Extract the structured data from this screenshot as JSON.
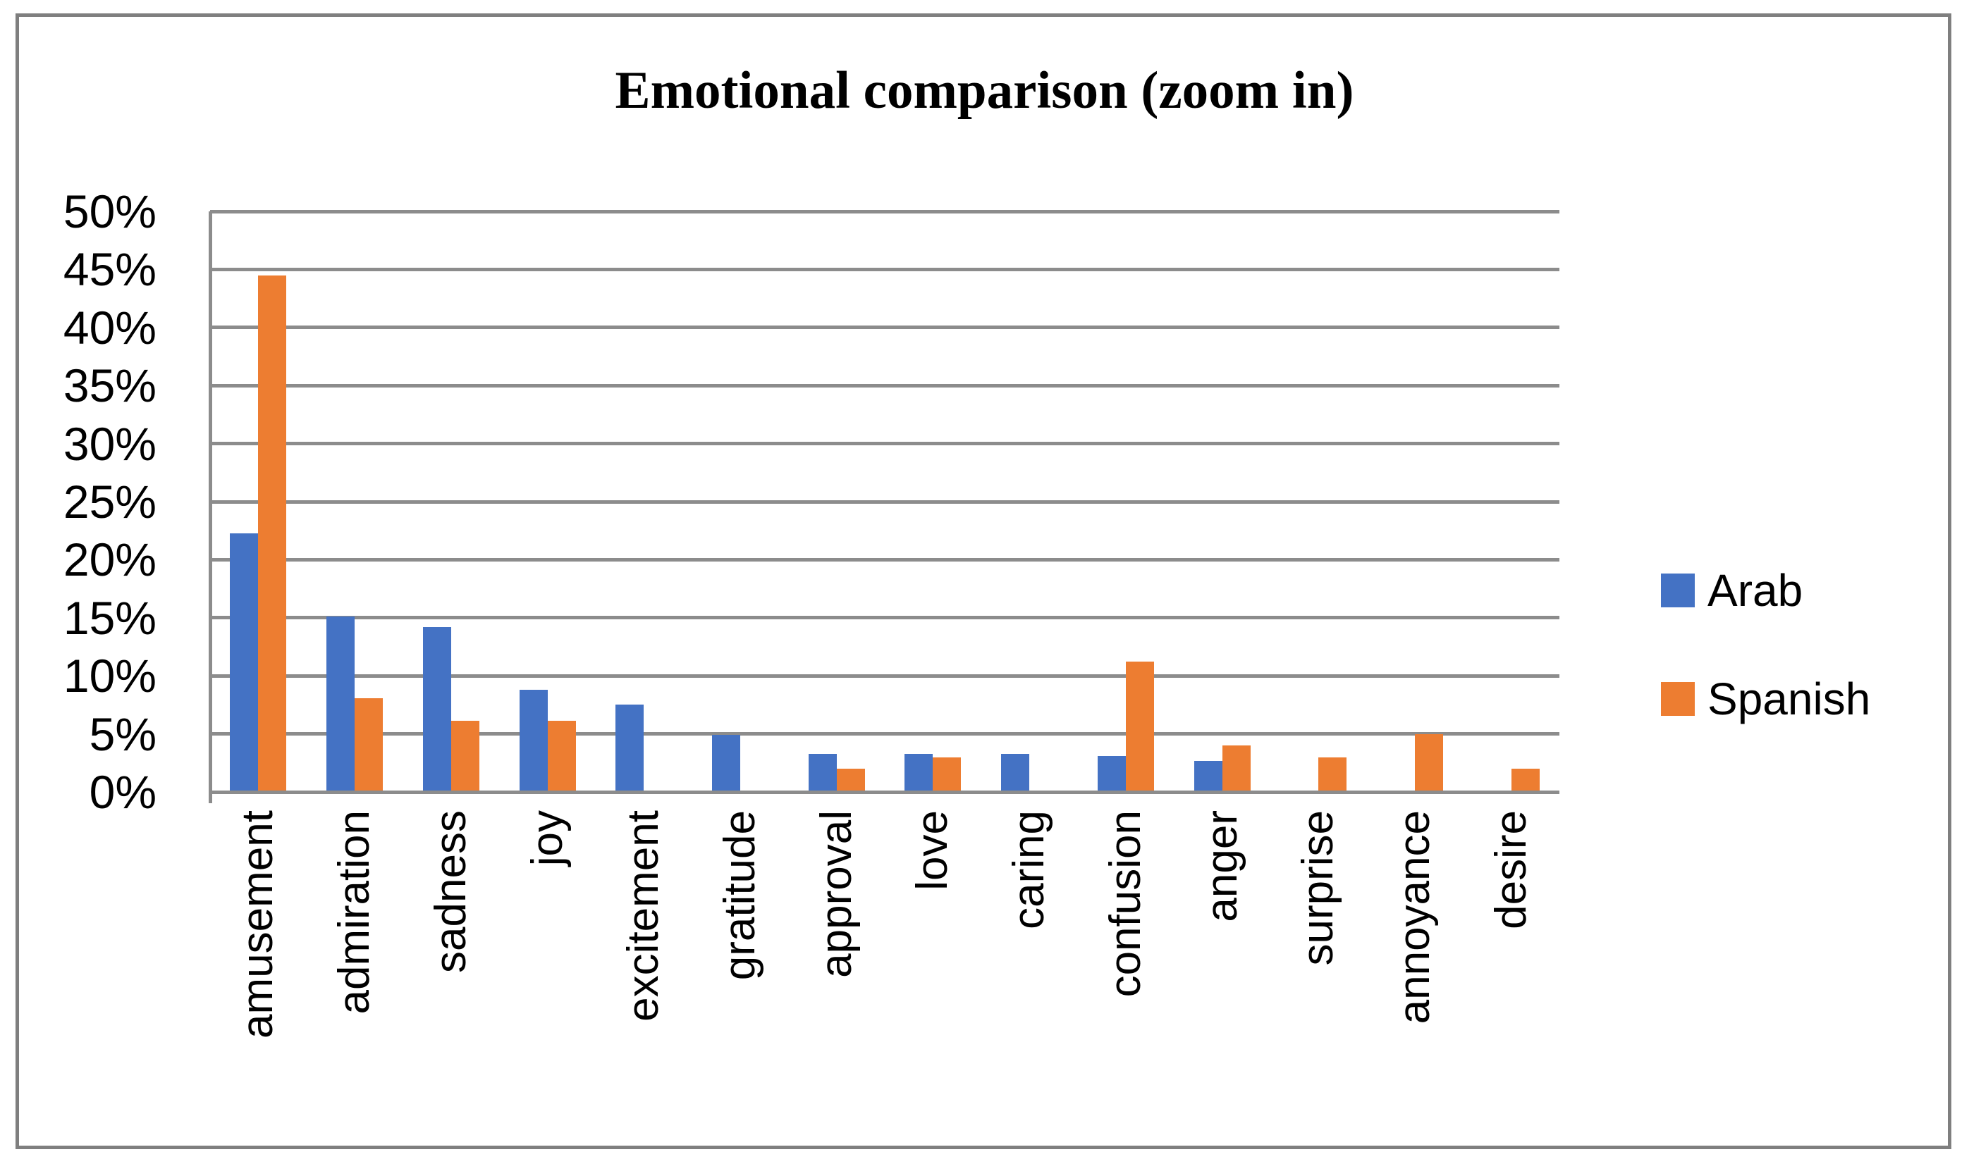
{
  "chart_data": {
    "type": "bar",
    "title": "Emotional comparison (zoom in)",
    "categories": [
      "amusement",
      "admiration",
      "sadness",
      "joy",
      "excitement",
      "gratitude",
      "approval",
      "love",
      "caring",
      "confusion",
      "anger",
      "surprise",
      "annoyance",
      "desire"
    ],
    "series": [
      {
        "name": "Arab",
        "color": "#4472C4",
        "values": [
          22.3,
          15.1,
          14.2,
          8.8,
          7.5,
          4.9,
          3.3,
          3.3,
          3.3,
          3.1,
          2.7,
          0,
          0,
          0
        ]
      },
      {
        "name": "Spanish",
        "color": "#ED7D31",
        "values": [
          44.5,
          8.1,
          6.1,
          6.1,
          0,
          0,
          2,
          3,
          0,
          11.2,
          4,
          3,
          5,
          2
        ]
      }
    ],
    "xlabel": "",
    "ylabel": "",
    "y_axis": {
      "min": 0,
      "max": 50,
      "step": 5,
      "tick_labels": [
        "0%",
        "5%",
        "10%",
        "15%",
        "20%",
        "25%",
        "30%",
        "35%",
        "40%",
        "45%",
        "50%"
      ],
      "format": "percent"
    },
    "x_axis": {
      "label_rotation_degrees": 90
    },
    "grid": true,
    "legend_position": "right",
    "colors": {
      "gridline": "#8C8C8C",
      "axis": "#8C8C8C",
      "frame_border": "#7F7F7F",
      "text": "#000000",
      "background": "#FFFFFF"
    }
  }
}
